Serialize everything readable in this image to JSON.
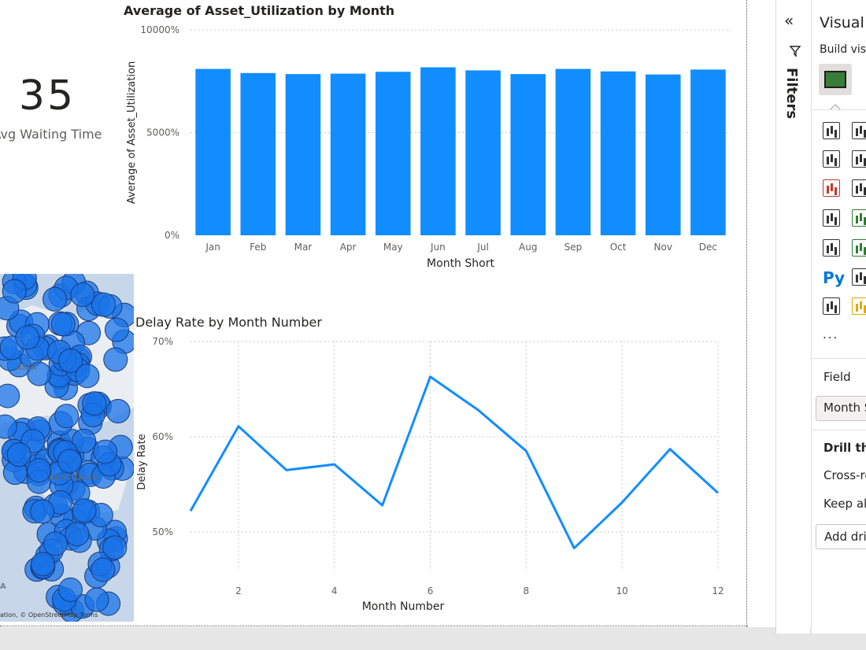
{
  "card": {
    "value": "35",
    "label": "Avg Waiting Time"
  },
  "chart_data": [
    {
      "type": "bar",
      "title": "Average of Asset_Utilization by Month",
      "xlabel": "Month Short",
      "ylabel": "Average of Asset_Utilization",
      "categories": [
        "Jan",
        "Feb",
        "Mar",
        "Apr",
        "May",
        "Jun",
        "Jul",
        "Aug",
        "Sep",
        "Oct",
        "Nov",
        "Dec"
      ],
      "values": [
        8100,
        7900,
        7850,
        7870,
        7960,
        8180,
        8030,
        7850,
        8100,
        7980,
        7830,
        8070
      ],
      "ylim": [
        0,
        10000
      ],
      "yticks": [
        "0%",
        "5000%",
        "10000%"
      ],
      "ytick_values": [
        0,
        5000,
        10000
      ],
      "color": "#118dff",
      "grid": true
    },
    {
      "type": "line",
      "title": "Delay Rate by Month Number",
      "xlabel": "Month Number",
      "ylabel": "Delay Rate",
      "x": [
        1,
        2,
        3,
        4,
        5,
        6,
        7,
        8,
        9,
        10,
        11,
        12
      ],
      "values": [
        52.2,
        61.1,
        56.5,
        57.1,
        52.8,
        66.3,
        62.8,
        58.5,
        48.3,
        53.1,
        58.7,
        54.1
      ],
      "xticks": [
        "2",
        "4",
        "6",
        "8",
        "10",
        "12"
      ],
      "xtick_values": [
        2,
        4,
        6,
        8,
        10,
        12
      ],
      "yticks": [
        "50%",
        "60%",
        "70%"
      ],
      "ytick_values": [
        50,
        60,
        70
      ],
      "ylim": [
        50,
        70
      ],
      "color": "#118dff",
      "grid": true
    }
  ],
  "map": {
    "attribution": "ation, © OpenStreetMap  Terms",
    "labels": [
      "ASIA",
      "AUSTRALIA",
      "A"
    ]
  },
  "filters": {
    "label": "Filters"
  },
  "visualizations": {
    "title": "Visual",
    "subtitle": "Build vis",
    "more": "...",
    "py_label": "Py",
    "field_label": "Field",
    "field_value": "Month S",
    "drill_label": "Drill thr",
    "cross_label": "Cross-re",
    "keep_label": "Keep all",
    "add_label": "Add dri"
  },
  "colors": {
    "accent": "#118dff",
    "map_bubble": "#1a73e8"
  }
}
